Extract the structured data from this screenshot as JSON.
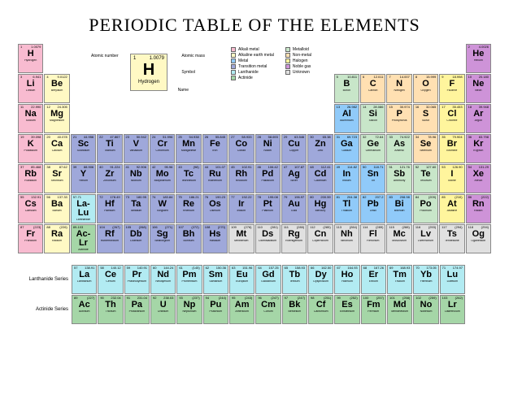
{
  "title": "PERIODIC TABLE OF THE ELEMENTS",
  "keyElement": {
    "num": "1",
    "mass": "1.0079",
    "sym": "H",
    "name": "Hydrogen",
    "bg": "#fff9c4"
  },
  "keyLabels": {
    "an": "Atomic number",
    "am": "Atomic mass",
    "sy": "Symbol",
    "nm": "Name"
  },
  "categories": {
    "alkali": {
      "label": "Alkali metal",
      "color": "#f8bbd0"
    },
    "alkaline": {
      "label": "Alkaline earth metal",
      "color": "#fff9c4"
    },
    "metal": {
      "label": "Metal",
      "color": "#90caf9"
    },
    "transition": {
      "label": "Transition metal",
      "color": "#9fa8da"
    },
    "lanth": {
      "label": "Lanthanide",
      "color": "#b2ebf2"
    },
    "actin": {
      "label": "Actinide",
      "color": "#a5d6a7"
    },
    "metalloid": {
      "label": "Metalloid",
      "color": "#c8e6c9"
    },
    "nonmetal": {
      "label": "Non-metal",
      "color": "#ffe0b2"
    },
    "halogen": {
      "label": "Halogen",
      "color": "#fff59d"
    },
    "noble": {
      "label": "Noble gas",
      "color": "#ce93d8"
    },
    "unknown": {
      "label": "Unknown",
      "color": "#e0e0e0"
    }
  },
  "seriesLabels": {
    "lan": "Lanthanide\nSeries",
    "act": "Actinide\nSeries"
  },
  "elements": [
    {
      "n": 1,
      "s": "H",
      "m": "1.0079",
      "nm": "Hydrogen",
      "c": "alkali",
      "r": 1,
      "col": 1
    },
    {
      "n": 2,
      "s": "He",
      "m": "4.0026",
      "nm": "Helium",
      "c": "noble",
      "r": 1,
      "col": 18
    },
    {
      "n": 3,
      "s": "Li",
      "m": "6.941",
      "nm": "Lithium",
      "c": "alkali",
      "r": 2,
      "col": 1
    },
    {
      "n": 4,
      "s": "Be",
      "m": "9.0122",
      "nm": "Beryllium",
      "c": "alkaline",
      "r": 2,
      "col": 2
    },
    {
      "n": 5,
      "s": "B",
      "m": "10.811",
      "nm": "Boron",
      "c": "metalloid",
      "r": 2,
      "col": 13
    },
    {
      "n": 6,
      "s": "C",
      "m": "12.011",
      "nm": "Carbon",
      "c": "nonmetal",
      "r": 2,
      "col": 14
    },
    {
      "n": 7,
      "s": "N",
      "m": "14.007",
      "nm": "Nitrogen",
      "c": "nonmetal",
      "r": 2,
      "col": 15
    },
    {
      "n": 8,
      "s": "O",
      "m": "15.999",
      "nm": "Oxygen",
      "c": "nonmetal",
      "r": 2,
      "col": 16
    },
    {
      "n": 9,
      "s": "F",
      "m": "18.998",
      "nm": "Fluorine",
      "c": "halogen",
      "r": 2,
      "col": 17
    },
    {
      "n": 10,
      "s": "Ne",
      "m": "20.180",
      "nm": "Neon",
      "c": "noble",
      "r": 2,
      "col": 18
    },
    {
      "n": 11,
      "s": "Na",
      "m": "22.990",
      "nm": "Sodium",
      "c": "alkali",
      "r": 3,
      "col": 1
    },
    {
      "n": 12,
      "s": "Mg",
      "m": "24.305",
      "nm": "Magnesium",
      "c": "alkaline",
      "r": 3,
      "col": 2
    },
    {
      "n": 13,
      "s": "Al",
      "m": "26.982",
      "nm": "Aluminium",
      "c": "metal",
      "r": 3,
      "col": 13
    },
    {
      "n": 14,
      "s": "Si",
      "m": "28.086",
      "nm": "Silicon",
      "c": "metalloid",
      "r": 3,
      "col": 14
    },
    {
      "n": 15,
      "s": "P",
      "m": "30.974",
      "nm": "Phosphorus",
      "c": "nonmetal",
      "r": 3,
      "col": 15
    },
    {
      "n": 16,
      "s": "S",
      "m": "32.065",
      "nm": "Sulfur",
      "c": "nonmetal",
      "r": 3,
      "col": 16
    },
    {
      "n": 17,
      "s": "Cl",
      "m": "35.453",
      "nm": "Chlorine",
      "c": "halogen",
      "r": 3,
      "col": 17
    },
    {
      "n": 18,
      "s": "Ar",
      "m": "39.948",
      "nm": "Argon",
      "c": "noble",
      "r": 3,
      "col": 18
    },
    {
      "n": 19,
      "s": "K",
      "m": "39.098",
      "nm": "Potassium",
      "c": "alkali",
      "r": 4,
      "col": 1
    },
    {
      "n": 20,
      "s": "Ca",
      "m": "40.078",
      "nm": "Calcium",
      "c": "alkaline",
      "r": 4,
      "col": 2
    },
    {
      "n": 21,
      "s": "Sc",
      "m": "44.956",
      "nm": "Scandium",
      "c": "transition",
      "r": 4,
      "col": 3
    },
    {
      "n": 22,
      "s": "Ti",
      "m": "47.867",
      "nm": "Titanium",
      "c": "transition",
      "r": 4,
      "col": 4
    },
    {
      "n": 23,
      "s": "V",
      "m": "50.942",
      "nm": "Vanadium",
      "c": "transition",
      "r": 4,
      "col": 5
    },
    {
      "n": 24,
      "s": "Cr",
      "m": "51.996",
      "nm": "Chromium",
      "c": "transition",
      "r": 4,
      "col": 6
    },
    {
      "n": 25,
      "s": "Mn",
      "m": "54.938",
      "nm": "Manganese",
      "c": "transition",
      "r": 4,
      "col": 7
    },
    {
      "n": 26,
      "s": "Fe",
      "m": "55.845",
      "nm": "Iron",
      "c": "transition",
      "r": 4,
      "col": 8
    },
    {
      "n": 27,
      "s": "Co",
      "m": "58.933",
      "nm": "Cobalt",
      "c": "transition",
      "r": 4,
      "col": 9
    },
    {
      "n": 28,
      "s": "Ni",
      "m": "58.693",
      "nm": "Nickel",
      "c": "transition",
      "r": 4,
      "col": 10
    },
    {
      "n": 29,
      "s": "Cu",
      "m": "63.546",
      "nm": "Copper",
      "c": "transition",
      "r": 4,
      "col": 11
    },
    {
      "n": 30,
      "s": "Zn",
      "m": "65.38",
      "nm": "Zinc",
      "c": "transition",
      "r": 4,
      "col": 12
    },
    {
      "n": 31,
      "s": "Ga",
      "m": "69.723",
      "nm": "Gallium",
      "c": "metal",
      "r": 4,
      "col": 13
    },
    {
      "n": 32,
      "s": "Ge",
      "m": "72.64",
      "nm": "Germanium",
      "c": "metalloid",
      "r": 4,
      "col": 14
    },
    {
      "n": 33,
      "s": "As",
      "m": "74.922",
      "nm": "Arsenic",
      "c": "metalloid",
      "r": 4,
      "col": 15
    },
    {
      "n": 34,
      "s": "Se",
      "m": "78.96",
      "nm": "Selenium",
      "c": "nonmetal",
      "r": 4,
      "col": 16
    },
    {
      "n": 35,
      "s": "Br",
      "m": "79.904",
      "nm": "Bromine",
      "c": "halogen",
      "r": 4,
      "col": 17
    },
    {
      "n": 36,
      "s": "Kr",
      "m": "83.798",
      "nm": "Krypton",
      "c": "noble",
      "r": 4,
      "col": 18
    },
    {
      "n": 37,
      "s": "Rb",
      "m": "85.468",
      "nm": "Rubidium",
      "c": "alkali",
      "r": 5,
      "col": 1
    },
    {
      "n": 38,
      "s": "Sr",
      "m": "87.62",
      "nm": "Strontium",
      "c": "alkaline",
      "r": 5,
      "col": 2
    },
    {
      "n": 39,
      "s": "Y",
      "m": "88.906",
      "nm": "Yttrium",
      "c": "transition",
      "r": 5,
      "col": 3
    },
    {
      "n": 40,
      "s": "Zr",
      "m": "91.224",
      "nm": "Zirconium",
      "c": "transition",
      "r": 5,
      "col": 4
    },
    {
      "n": 41,
      "s": "Nb",
      "m": "92.906",
      "nm": "Niobium",
      "c": "transition",
      "r": 5,
      "col": 5
    },
    {
      "n": 42,
      "s": "Mo",
      "m": "95.96",
      "nm": "Molybdenum",
      "c": "transition",
      "r": 5,
      "col": 6
    },
    {
      "n": 43,
      "s": "Tc",
      "m": "(98)",
      "nm": "Technetium",
      "c": "transition",
      "r": 5,
      "col": 7
    },
    {
      "n": 44,
      "s": "Ru",
      "m": "101.07",
      "nm": "Ruthenium",
      "c": "transition",
      "r": 5,
      "col": 8
    },
    {
      "n": 45,
      "s": "Rh",
      "m": "102.91",
      "nm": "Rhodium",
      "c": "transition",
      "r": 5,
      "col": 9
    },
    {
      "n": 46,
      "s": "Pd",
      "m": "106.42",
      "nm": "Palladium",
      "c": "transition",
      "r": 5,
      "col": 10
    },
    {
      "n": 47,
      "s": "Ag",
      "m": "107.87",
      "nm": "Silver",
      "c": "transition",
      "r": 5,
      "col": 11
    },
    {
      "n": 48,
      "s": "Cd",
      "m": "112.41",
      "nm": "Cadmium",
      "c": "transition",
      "r": 5,
      "col": 12
    },
    {
      "n": 49,
      "s": "In",
      "m": "114.82",
      "nm": "Indium",
      "c": "metal",
      "r": 5,
      "col": 13
    },
    {
      "n": 50,
      "s": "Sn",
      "m": "118.71",
      "nm": "Tin",
      "c": "metal",
      "r": 5,
      "col": 14
    },
    {
      "n": 51,
      "s": "Sb",
      "m": "121.76",
      "nm": "Antimony",
      "c": "metalloid",
      "r": 5,
      "col": 15
    },
    {
      "n": 52,
      "s": "Te",
      "m": "127.60",
      "nm": "Tellurium",
      "c": "metalloid",
      "r": 5,
      "col": 16
    },
    {
      "n": 53,
      "s": "I",
      "m": "126.90",
      "nm": "Iodine",
      "c": "halogen",
      "r": 5,
      "col": 17
    },
    {
      "n": 54,
      "s": "Xe",
      "m": "131.29",
      "nm": "Xenon",
      "c": "noble",
      "r": 5,
      "col": 18
    },
    {
      "n": 55,
      "s": "Cs",
      "m": "132.91",
      "nm": "Caesium",
      "c": "alkali",
      "r": 6,
      "col": 1
    },
    {
      "n": 56,
      "s": "Ba",
      "m": "137.33",
      "nm": "Barium",
      "c": "alkaline",
      "r": 6,
      "col": 2
    },
    {
      "n": "57-71",
      "s": "La-Lu",
      "m": "",
      "nm": "Lanthanide",
      "c": "lanth",
      "r": 6,
      "col": 3
    },
    {
      "n": 72,
      "s": "Hf",
      "m": "178.49",
      "nm": "Hafnium",
      "c": "transition",
      "r": 6,
      "col": 4
    },
    {
      "n": 73,
      "s": "Ta",
      "m": "180.95",
      "nm": "Tantalum",
      "c": "transition",
      "r": 6,
      "col": 5
    },
    {
      "n": 74,
      "s": "W",
      "m": "183.84",
      "nm": "Tungsten",
      "c": "transition",
      "r": 6,
      "col": 6
    },
    {
      "n": 75,
      "s": "Re",
      "m": "186.21",
      "nm": "Rhenium",
      "c": "transition",
      "r": 6,
      "col": 7
    },
    {
      "n": 76,
      "s": "Os",
      "m": "190.23",
      "nm": "Osmium",
      "c": "transition",
      "r": 6,
      "col": 8
    },
    {
      "n": 77,
      "s": "Ir",
      "m": "192.22",
      "nm": "Iridium",
      "c": "transition",
      "r": 6,
      "col": 9
    },
    {
      "n": 78,
      "s": "Pt",
      "m": "195.08",
      "nm": "Platinum",
      "c": "transition",
      "r": 6,
      "col": 10
    },
    {
      "n": 79,
      "s": "Au",
      "m": "196.97",
      "nm": "Gold",
      "c": "transition",
      "r": 6,
      "col": 11
    },
    {
      "n": 80,
      "s": "Hg",
      "m": "200.59",
      "nm": "Mercury",
      "c": "transition",
      "r": 6,
      "col": 12
    },
    {
      "n": 81,
      "s": "Tl",
      "m": "204.38",
      "nm": "Thallium",
      "c": "metal",
      "r": 6,
      "col": 13
    },
    {
      "n": 82,
      "s": "Pb",
      "m": "207.2",
      "nm": "Lead",
      "c": "metal",
      "r": 6,
      "col": 14
    },
    {
      "n": 83,
      "s": "Bi",
      "m": "208.98",
      "nm": "Bismuth",
      "c": "metal",
      "r": 6,
      "col": 15
    },
    {
      "n": 84,
      "s": "Po",
      "m": "(209)",
      "nm": "Polonium",
      "c": "metalloid",
      "r": 6,
      "col": 16
    },
    {
      "n": 85,
      "s": "At",
      "m": "(210)",
      "nm": "Astatine",
      "c": "halogen",
      "r": 6,
      "col": 17
    },
    {
      "n": 86,
      "s": "Rn",
      "m": "(222)",
      "nm": "Radon",
      "c": "noble",
      "r": 6,
      "col": 18
    },
    {
      "n": 87,
      "s": "Fr",
      "m": "(223)",
      "nm": "Francium",
      "c": "alkali",
      "r": 7,
      "col": 1
    },
    {
      "n": 88,
      "s": "Ra",
      "m": "(226)",
      "nm": "Radium",
      "c": "alkaline",
      "r": 7,
      "col": 2
    },
    {
      "n": "89-103",
      "s": "Ac-Lr",
      "m": "",
      "nm": "Actinide",
      "c": "actin",
      "r": 7,
      "col": 3
    },
    {
      "n": 104,
      "s": "Rf",
      "m": "(267)",
      "nm": "Rutherfordium",
      "c": "transition",
      "r": 7,
      "col": 4
    },
    {
      "n": 105,
      "s": "Db",
      "m": "(268)",
      "nm": "Dubnium",
      "c": "transition",
      "r": 7,
      "col": 5
    },
    {
      "n": 106,
      "s": "Sg",
      "m": "(271)",
      "nm": "Seaborgium",
      "c": "transition",
      "r": 7,
      "col": 6
    },
    {
      "n": 107,
      "s": "Bh",
      "m": "(272)",
      "nm": "Bohrium",
      "c": "transition",
      "r": 7,
      "col": 7
    },
    {
      "n": 108,
      "s": "Hs",
      "m": "(270)",
      "nm": "Hassium",
      "c": "transition",
      "r": 7,
      "col": 8
    },
    {
      "n": 109,
      "s": "Mt",
      "m": "(276)",
      "nm": "Meitnerium",
      "c": "unknown",
      "r": 7,
      "col": 9
    },
    {
      "n": 110,
      "s": "Ds",
      "m": "(281)",
      "nm": "Darmstadtium",
      "c": "unknown",
      "r": 7,
      "col": 10
    },
    {
      "n": 111,
      "s": "Rg",
      "m": "(280)",
      "nm": "Roentgenium",
      "c": "unknown",
      "r": 7,
      "col": 11
    },
    {
      "n": 112,
      "s": "Cn",
      "m": "(285)",
      "nm": "Copernicium",
      "c": "unknown",
      "r": 7,
      "col": 12
    },
    {
      "n": 113,
      "s": "Nh",
      "m": "(284)",
      "nm": "Nihonium",
      "c": "unknown",
      "r": 7,
      "col": 13
    },
    {
      "n": 114,
      "s": "Fl",
      "m": "(289)",
      "nm": "Flerovium",
      "c": "unknown",
      "r": 7,
      "col": 14
    },
    {
      "n": 115,
      "s": "Mc",
      "m": "(288)",
      "nm": "Moscovium",
      "c": "unknown",
      "r": 7,
      "col": 15
    },
    {
      "n": 116,
      "s": "Lv",
      "m": "(293)",
      "nm": "Livermorium",
      "c": "unknown",
      "r": 7,
      "col": 16
    },
    {
      "n": 117,
      "s": "Ts",
      "m": "(294)",
      "nm": "Tennessine",
      "c": "unknown",
      "r": 7,
      "col": 17
    },
    {
      "n": 118,
      "s": "Og",
      "m": "(294)",
      "nm": "Oganesson",
      "c": "unknown",
      "r": 7,
      "col": 18
    }
  ],
  "lanthanides": [
    {
      "n": 57,
      "s": "La",
      "m": "138.91",
      "nm": "Lanthanum",
      "c": "lanth"
    },
    {
      "n": 58,
      "s": "Ce",
      "m": "140.12",
      "nm": "Cerium",
      "c": "lanth"
    },
    {
      "n": 59,
      "s": "Pr",
      "m": "140.91",
      "nm": "Praseodymium",
      "c": "lanth"
    },
    {
      "n": 60,
      "s": "Nd",
      "m": "144.24",
      "nm": "Neodymium",
      "c": "lanth"
    },
    {
      "n": 61,
      "s": "Pm",
      "m": "(145)",
      "nm": "Promethium",
      "c": "lanth"
    },
    {
      "n": 62,
      "s": "Sm",
      "m": "150.36",
      "nm": "Samarium",
      "c": "lanth"
    },
    {
      "n": 63,
      "s": "Eu",
      "m": "151.96",
      "nm": "Europium",
      "c": "lanth"
    },
    {
      "n": 64,
      "s": "Gd",
      "m": "157.25",
      "nm": "Gadolinium",
      "c": "lanth"
    },
    {
      "n": 65,
      "s": "Tb",
      "m": "158.93",
      "nm": "Terbium",
      "c": "lanth"
    },
    {
      "n": 66,
      "s": "Dy",
      "m": "162.50",
      "nm": "Dysprosium",
      "c": "lanth"
    },
    {
      "n": 67,
      "s": "Ho",
      "m": "164.93",
      "nm": "Holmium",
      "c": "lanth"
    },
    {
      "n": 68,
      "s": "Er",
      "m": "167.26",
      "nm": "Erbium",
      "c": "lanth"
    },
    {
      "n": 69,
      "s": "Tm",
      "m": "168.93",
      "nm": "Thulium",
      "c": "lanth"
    },
    {
      "n": 70,
      "s": "Yb",
      "m": "173.05",
      "nm": "Ytterbium",
      "c": "lanth"
    },
    {
      "n": 71,
      "s": "Lu",
      "m": "174.97",
      "nm": "Lutetium",
      "c": "lanth"
    }
  ],
  "actinides": [
    {
      "n": 89,
      "s": "Ac",
      "m": "(227)",
      "nm": "Actinium",
      "c": "actin"
    },
    {
      "n": 90,
      "s": "Th",
      "m": "232.04",
      "nm": "Thorium",
      "c": "actin"
    },
    {
      "n": 91,
      "s": "Pa",
      "m": "231.04",
      "nm": "Protactinium",
      "c": "actin"
    },
    {
      "n": 92,
      "s": "U",
      "m": "238.03",
      "nm": "Uranium",
      "c": "actin"
    },
    {
      "n": 93,
      "s": "Np",
      "m": "(237)",
      "nm": "Neptunium",
      "c": "actin"
    },
    {
      "n": 94,
      "s": "Pu",
      "m": "(244)",
      "nm": "Plutonium",
      "c": "actin"
    },
    {
      "n": 95,
      "s": "Am",
      "m": "(243)",
      "nm": "Americium",
      "c": "actin"
    },
    {
      "n": 96,
      "s": "Cm",
      "m": "(247)",
      "nm": "Curium",
      "c": "actin"
    },
    {
      "n": 97,
      "s": "Bk",
      "m": "(247)",
      "nm": "Berkelium",
      "c": "actin"
    },
    {
      "n": 98,
      "s": "Cf",
      "m": "(251)",
      "nm": "Californium",
      "c": "actin"
    },
    {
      "n": 99,
      "s": "Es",
      "m": "(252)",
      "nm": "Einsteinium",
      "c": "actin"
    },
    {
      "n": 100,
      "s": "Fm",
      "m": "(257)",
      "nm": "Fermium",
      "c": "actin"
    },
    {
      "n": 101,
      "s": "Md",
      "m": "(258)",
      "nm": "Mendelevium",
      "c": "actin"
    },
    {
      "n": 102,
      "s": "No",
      "m": "(259)",
      "nm": "Nobelium",
      "c": "actin"
    },
    {
      "n": 103,
      "s": "Lr",
      "m": "(262)",
      "nm": "Lawrencium",
      "c": "actin"
    }
  ]
}
